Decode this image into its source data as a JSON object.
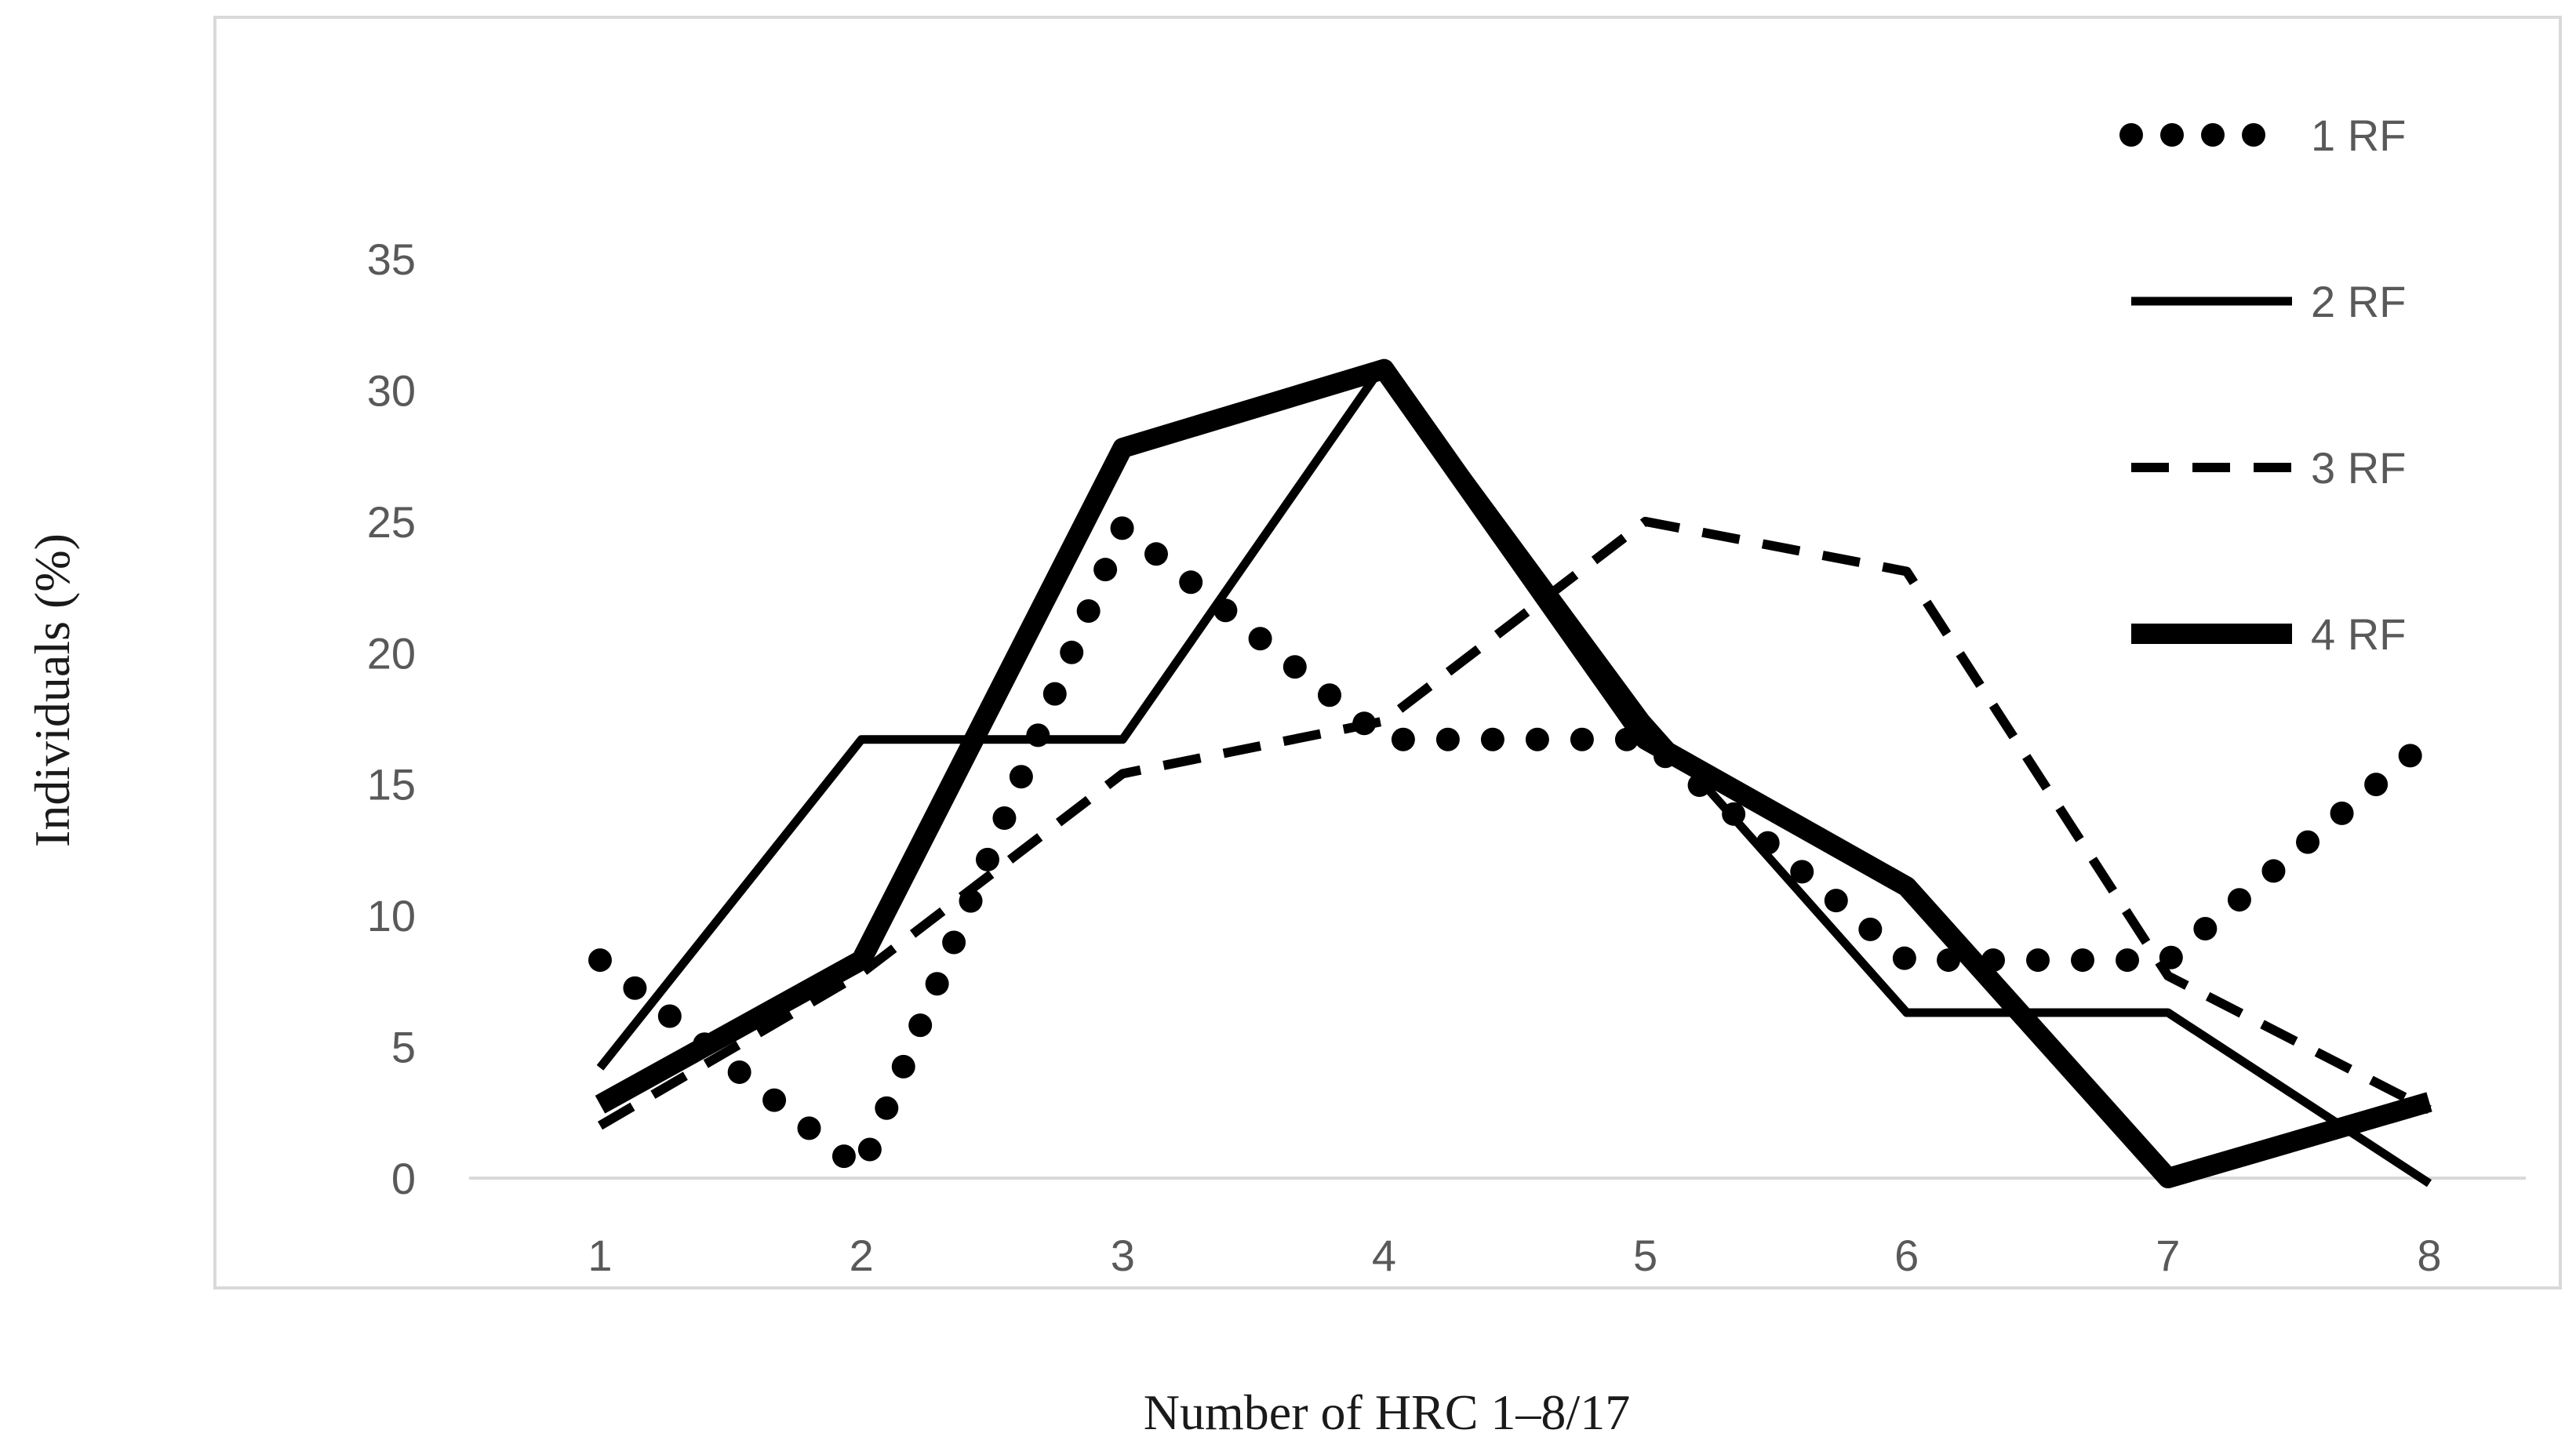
{
  "chart_data": {
    "type": "line",
    "title": "",
    "xlabel": "Number of HRC 1–8/17",
    "ylabel": "Individuals (%)",
    "categories": [
      "1",
      "2",
      "3",
      "4",
      "5",
      "6",
      "7",
      "8"
    ],
    "y_ticks": [
      "0",
      "5",
      "10",
      "15",
      "20",
      "25",
      "30",
      "35"
    ],
    "ylim": [
      0,
      35
    ],
    "grid": false,
    "legend_position": "top-right",
    "series": [
      {
        "name": "1 RF",
        "style": "dotted",
        "values": [
          8.3,
          0.3,
          24.8,
          16.7,
          16.7,
          8.3,
          8.3,
          16.7
        ]
      },
      {
        "name": "2 RF",
        "style": "solid",
        "values": [
          4.2,
          16.7,
          16.7,
          31.0,
          17.5,
          6.3,
          6.3,
          -0.2
        ]
      },
      {
        "name": "3 RF",
        "style": "dashed",
        "values": [
          2.0,
          7.8,
          15.4,
          17.4,
          25.0,
          23.1,
          7.7,
          2.6
        ]
      },
      {
        "name": "4 RF",
        "style": "thick",
        "values": [
          2.8,
          8.3,
          27.8,
          30.8,
          16.7,
          11.1,
          0.0,
          2.9
        ]
      }
    ],
    "colors": {
      "lines": "#000000",
      "tick_text": "#595959",
      "axis_line": "#d9d9d9",
      "frame": "#d9d9d9"
    }
  }
}
